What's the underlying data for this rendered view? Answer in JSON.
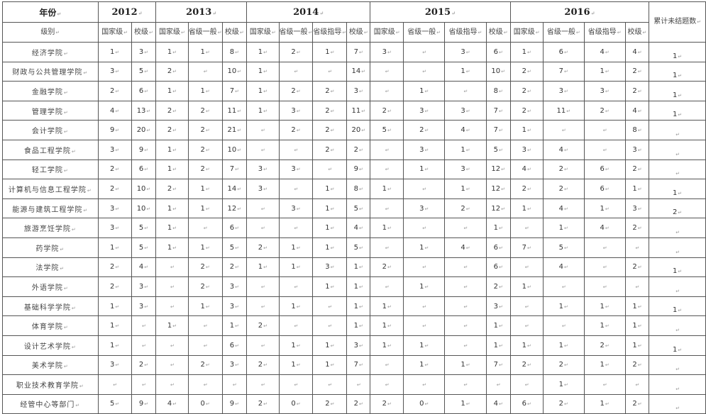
{
  "header": {
    "year_label": "年份",
    "level_label": "级别",
    "cumulative_label": "累计未结题数",
    "years": [
      {
        "year": "2012",
        "levels": [
          "国家级",
          "校级"
        ]
      },
      {
        "year": "2013",
        "levels": [
          "国家级",
          "省级一般",
          "校级"
        ]
      },
      {
        "year": "2014",
        "levels": [
          "国家级",
          "省级一般",
          "省级指导",
          "校级"
        ]
      },
      {
        "year": "2015",
        "levels": [
          "国家级",
          "省级一般",
          "省级指导",
          "校级"
        ]
      },
      {
        "year": "2016",
        "levels": [
          "国家级",
          "省级一般",
          "省级指导",
          "校级"
        ]
      }
    ]
  },
  "rows": [
    {
      "name": "经济学院",
      "values": [
        "1",
        "3",
        "1",
        "1",
        "8",
        "1",
        "2",
        "1",
        "7",
        "3",
        "",
        "3",
        "6",
        "1",
        "6",
        "4",
        "4"
      ],
      "cumulative": "1"
    },
    {
      "name": "财政与公共管理学院",
      "values": [
        "3",
        "5",
        "2",
        "",
        "10",
        "1",
        "",
        "",
        "14",
        "",
        "",
        "1",
        "10",
        "2",
        "7",
        "1",
        "2"
      ],
      "cumulative": "1"
    },
    {
      "name": "金融学院",
      "values": [
        "2",
        "6",
        "1",
        "1",
        "7",
        "1",
        "2",
        "2",
        "3",
        "",
        "1",
        "",
        "8",
        "2",
        "3",
        "3",
        "2"
      ],
      "cumulative": "1"
    },
    {
      "name": "管理学院",
      "values": [
        "4",
        "13",
        "2",
        "2",
        "11",
        "1",
        "3",
        "2",
        "11",
        "2",
        "3",
        "3",
        "7",
        "2",
        "11",
        "2",
        "4"
      ],
      "cumulative": "1"
    },
    {
      "name": "会计学院",
      "values": [
        "9",
        "20",
        "2",
        "2",
        "21",
        "",
        "2",
        "2",
        "20",
        "5",
        "2",
        "4",
        "7",
        "1",
        "",
        "",
        "8"
      ],
      "cumulative": ""
    },
    {
      "name": "食品工程学院",
      "values": [
        "3",
        "9",
        "1",
        "2",
        "10",
        "",
        "",
        "2",
        "2",
        "",
        "3",
        "1",
        "5",
        "3",
        "4",
        "",
        "3"
      ],
      "cumulative": ""
    },
    {
      "name": "轻工学院",
      "values": [
        "2",
        "6",
        "1",
        "2",
        "7",
        "3",
        "3",
        "",
        "9",
        "",
        "1",
        "3",
        "12",
        "4",
        "2",
        "6",
        "2"
      ],
      "cumulative": ""
    },
    {
      "name": "计算机与信息工程学院",
      "values": [
        "2",
        "10",
        "2",
        "1",
        "14",
        "3",
        "",
        "1",
        "8",
        "1",
        "",
        "1",
        "12",
        "2",
        "2",
        "6",
        "1"
      ],
      "cumulative": "1"
    },
    {
      "name": "能源与建筑工程学院",
      "values": [
        "3",
        "10",
        "1",
        "1",
        "12",
        "",
        "3",
        "1",
        "5",
        "",
        "3",
        "2",
        "12",
        "1",
        "4",
        "1",
        "3"
      ],
      "cumulative": "2"
    },
    {
      "name": "旅游烹饪学院",
      "values": [
        "3",
        "5",
        "1",
        "",
        "6",
        "",
        "",
        "1",
        "4",
        "1",
        "",
        "",
        "1",
        "",
        "1",
        "4",
        "2"
      ],
      "cumulative": ""
    },
    {
      "name": "药学院",
      "values": [
        "1",
        "5",
        "1",
        "1",
        "5",
        "2",
        "1",
        "1",
        "5",
        "",
        "1",
        "4",
        "6",
        "7",
        "5",
        "",
        ""
      ],
      "cumulative": ""
    },
    {
      "name": "法学院",
      "values": [
        "2",
        "4",
        "",
        "2",
        "2",
        "1",
        "1",
        "3",
        "1",
        "2",
        "",
        "",
        "6",
        "",
        "4",
        "",
        "2"
      ],
      "cumulative": "1"
    },
    {
      "name": "外语学院",
      "values": [
        "2",
        "3",
        "",
        "2",
        "3",
        "",
        "",
        "1",
        "1",
        "",
        "1",
        "",
        "2",
        "1",
        "",
        "",
        ""
      ],
      "cumulative": ""
    },
    {
      "name": "基础科学学院",
      "values": [
        "1",
        "3",
        "",
        "1",
        "3",
        "",
        "1",
        "",
        "1",
        "1",
        "",
        "",
        "3",
        "",
        "1",
        "1",
        "1"
      ],
      "cumulative": "1"
    },
    {
      "name": "体育学院",
      "values": [
        "1",
        "",
        "1",
        "",
        "1",
        "2",
        "",
        "",
        "1",
        "1",
        "",
        "",
        "1",
        "",
        "",
        "1",
        "1"
      ],
      "cumulative": ""
    },
    {
      "name": "设计艺术学院",
      "values": [
        "1",
        "",
        "",
        "",
        "6",
        "",
        "1",
        "1",
        "3",
        "1",
        "1",
        "",
        "1",
        "1",
        "1",
        "2",
        "1"
      ],
      "cumulative": "1"
    },
    {
      "name": "美术学院",
      "values": [
        "3",
        "2",
        "",
        "2",
        "3",
        "2",
        "1",
        "1",
        "7",
        "",
        "1",
        "1",
        "7",
        "2",
        "2",
        "1",
        "2"
      ],
      "cumulative": ""
    },
    {
      "name": "职业技术教育学院",
      "values": [
        "",
        "",
        "",
        "",
        "",
        "",
        "",
        "",
        "",
        "",
        "",
        "",
        "",
        "",
        "1",
        "",
        ""
      ],
      "cumulative": ""
    },
    {
      "name": "经管中心等部门",
      "values": [
        "5",
        "9",
        "4",
        "0",
        "9",
        "2",
        "0",
        "2",
        "2",
        "2",
        "0",
        "1",
        "4",
        "6",
        "2",
        "1",
        "2"
      ],
      "cumulative": ""
    }
  ]
}
